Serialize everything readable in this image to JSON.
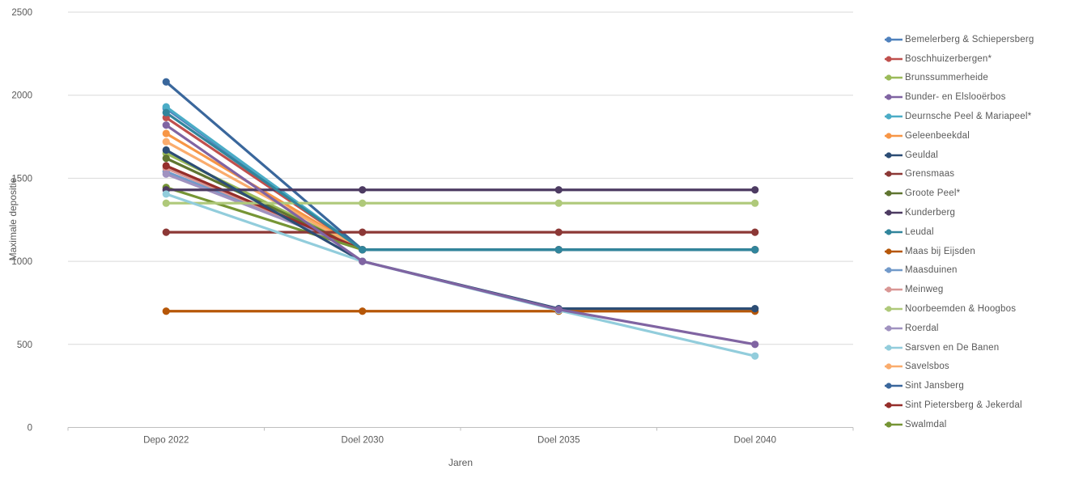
{
  "chart_data": {
    "type": "line",
    "title": "",
    "xlabel": "Jaren",
    "ylabel": "Maximale depositie",
    "categories": [
      "Depo 2022",
      "Doel 2030",
      "Doel 2035",
      "Doel 2040"
    ],
    "y_ticks": [
      0,
      500,
      1000,
      1500,
      2000,
      2500
    ],
    "ylim": [
      0,
      2500
    ],
    "grid": "horizontal",
    "legend_position": "right",
    "grid_color": "#d9d9d9",
    "axis_color": "#bfbfbf",
    "text_color": "#595959",
    "series": [
      {
        "name": "Bemelerberg & Schiepersberg",
        "color": "#4F81BD",
        "values": [
          1920,
          1070,
          1070,
          1070
        ]
      },
      {
        "name": "Boschhuizerbergen*",
        "color": "#C0504D",
        "values": [
          1865,
          1070,
          1070,
          1070
        ]
      },
      {
        "name": "Brunssummerheide",
        "color": "#9BBB59",
        "values": [
          1650,
          1070,
          1070,
          1070
        ]
      },
      {
        "name": "Bunder- en Elslooërbos",
        "color": "#8064A2",
        "values": [
          1820,
          1000,
          710,
          500
        ]
      },
      {
        "name": "Deurnsche Peel & Mariapeel*",
        "color": "#4BACC6",
        "values": [
          1930,
          1070,
          1070,
          1070
        ]
      },
      {
        "name": "Geleenbeekdal",
        "color": "#F79646",
        "values": [
          1770,
          1070,
          1070,
          1070
        ]
      },
      {
        "name": "Geuldal",
        "color": "#2C4D75",
        "values": [
          1670,
          1000,
          715,
          715
        ]
      },
      {
        "name": "Grensmaas",
        "color": "#8C3836",
        "values": [
          1175,
          1175,
          1175,
          1175
        ]
      },
      {
        "name": "Groote Peel*",
        "color": "#5F7530",
        "values": [
          1620,
          1070,
          1070,
          1070
        ]
      },
      {
        "name": "Kunderberg",
        "color": "#4D3B62",
        "values": [
          1430,
          1430,
          1430,
          1430
        ]
      },
      {
        "name": "Leudal",
        "color": "#31859C",
        "values": [
          1895,
          1070,
          1070,
          1070
        ]
      },
      {
        "name": "Maas bij Eijsden",
        "color": "#B65708",
        "values": [
          700,
          700,
          700,
          700
        ]
      },
      {
        "name": "Maasduinen",
        "color": "#729ACA",
        "values": [
          1540,
          1070,
          1070,
          1070
        ]
      },
      {
        "name": "Meinweg",
        "color": "#D99694",
        "values": [
          1560,
          1070,
          1070,
          1070
        ]
      },
      {
        "name": "Noorbeemden & Hoogbos",
        "color": "#AFC97A",
        "values": [
          1350,
          1350,
          1350,
          1350
        ]
      },
      {
        "name": "Roerdal",
        "color": "#A092C0",
        "values": [
          1525,
          1070,
          1070,
          1070
        ]
      },
      {
        "name": "Sarsven en De Banen",
        "color": "#92CDDC",
        "values": [
          1405,
          1000,
          705,
          430
        ]
      },
      {
        "name": "Savelsbos",
        "color": "#FAAC6D",
        "values": [
          1720,
          1070,
          1070,
          1070
        ]
      },
      {
        "name": "Sint Jansberg",
        "color": "#3A679C",
        "values": [
          2080,
          1070,
          1070,
          1070
        ]
      },
      {
        "name": "Sint Pietersberg & Jekerdal",
        "color": "#952E2B",
        "values": [
          1575,
          1070,
          1070,
          1070
        ]
      },
      {
        "name": "Swalmdal",
        "color": "#769535",
        "values": [
          1445,
          1070,
          1070,
          1070
        ]
      }
    ],
    "draw_order": [
      0,
      1,
      2,
      4,
      5,
      8,
      12,
      13,
      15,
      17,
      19,
      20,
      18,
      7,
      9,
      14,
      11,
      6,
      16,
      3,
      10
    ]
  }
}
